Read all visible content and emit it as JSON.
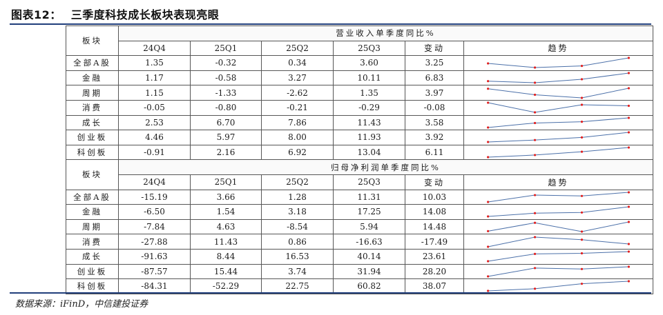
{
  "figure": {
    "number": "图表12：",
    "title": "三季度科技成长板块表现亮眼",
    "source": "数据来源：iFinD，中信建投证券"
  },
  "sections": [
    {
      "row_header": "板块",
      "title": "营业收入单季度同比%",
      "columns": [
        "24Q4",
        "25Q1",
        "25Q2",
        "25Q3",
        "变动",
        "趋势"
      ],
      "rows": [
        {
          "name": "全部A股",
          "values": [
            "1.35",
            "-0.32",
            "0.34",
            "3.60",
            "3.25"
          ],
          "trend": [
            1.35,
            -0.32,
            0.34,
            3.6
          ]
        },
        {
          "name": "金融",
          "values": [
            "1.17",
            "-0.58",
            "3.27",
            "10.11",
            "6.83"
          ],
          "trend": [
            1.17,
            -0.58,
            3.27,
            10.11
          ]
        },
        {
          "name": "周期",
          "values": [
            "1.15",
            "-1.33",
            "-2.62",
            "1.35",
            "3.97"
          ],
          "trend": [
            1.15,
            -1.33,
            -2.62,
            1.35
          ]
        },
        {
          "name": "消费",
          "values": [
            "-0.05",
            "-0.80",
            "-0.21",
            "-0.29",
            "-0.08"
          ],
          "trend": [
            -0.05,
            -0.8,
            -0.21,
            -0.29
          ]
        },
        {
          "name": "成长",
          "values": [
            "2.53",
            "6.70",
            "7.86",
            "11.43",
            "3.58"
          ],
          "trend": [
            2.53,
            6.7,
            7.86,
            11.43
          ]
        },
        {
          "name": "创业板",
          "values": [
            "4.46",
            "5.97",
            "8.00",
            "11.93",
            "3.92"
          ],
          "trend": [
            4.46,
            5.97,
            8.0,
            11.93
          ]
        },
        {
          "name": "科创板",
          "values": [
            "-0.91",
            "2.16",
            "6.92",
            "13.04",
            "6.11"
          ],
          "trend": [
            -0.91,
            2.16,
            6.92,
            13.04
          ]
        }
      ]
    },
    {
      "row_header": "板块",
      "title": "归母净利润单季度同比%",
      "columns": [
        "24Q4",
        "25Q1",
        "25Q2",
        "25Q3",
        "变动",
        "趋势"
      ],
      "rows": [
        {
          "name": "全部A股",
          "values": [
            "-15.19",
            "3.66",
            "1.28",
            "11.31",
            "10.03"
          ],
          "trend": [
            -15.19,
            3.66,
            1.28,
            11.31
          ]
        },
        {
          "name": "金融",
          "values": [
            "-6.50",
            "1.54",
            "3.18",
            "17.25",
            "14.08"
          ],
          "trend": [
            -6.5,
            1.54,
            3.18,
            17.25
          ]
        },
        {
          "name": "周期",
          "values": [
            "-7.84",
            "4.63",
            "-8.54",
            "5.94",
            "14.48"
          ],
          "trend": [
            -7.84,
            4.63,
            -8.54,
            5.94
          ]
        },
        {
          "name": "消费",
          "values": [
            "-27.88",
            "11.43",
            "0.86",
            "-16.63",
            "-17.49"
          ],
          "trend": [
            -27.88,
            11.43,
            0.86,
            -16.63
          ]
        },
        {
          "name": "成长",
          "values": [
            "-91.63",
            "8.44",
            "16.53",
            "40.14",
            "23.61"
          ],
          "trend": [
            -91.63,
            8.44,
            16.53,
            40.14
          ]
        },
        {
          "name": "创业板",
          "values": [
            "-87.57",
            "15.44",
            "3.74",
            "31.94",
            "28.20"
          ],
          "trend": [
            -87.57,
            15.44,
            3.74,
            31.94
          ]
        },
        {
          "name": "科创板",
          "values": [
            "-84.31",
            "-52.29",
            "22.75",
            "60.82",
            "38.07"
          ],
          "trend": [
            -84.31,
            -52.29,
            22.75,
            60.82
          ]
        }
      ]
    }
  ],
  "colors": {
    "rule": "#1f3d7a",
    "sparkline": "#4a6fa8",
    "marker": "#e02020"
  }
}
